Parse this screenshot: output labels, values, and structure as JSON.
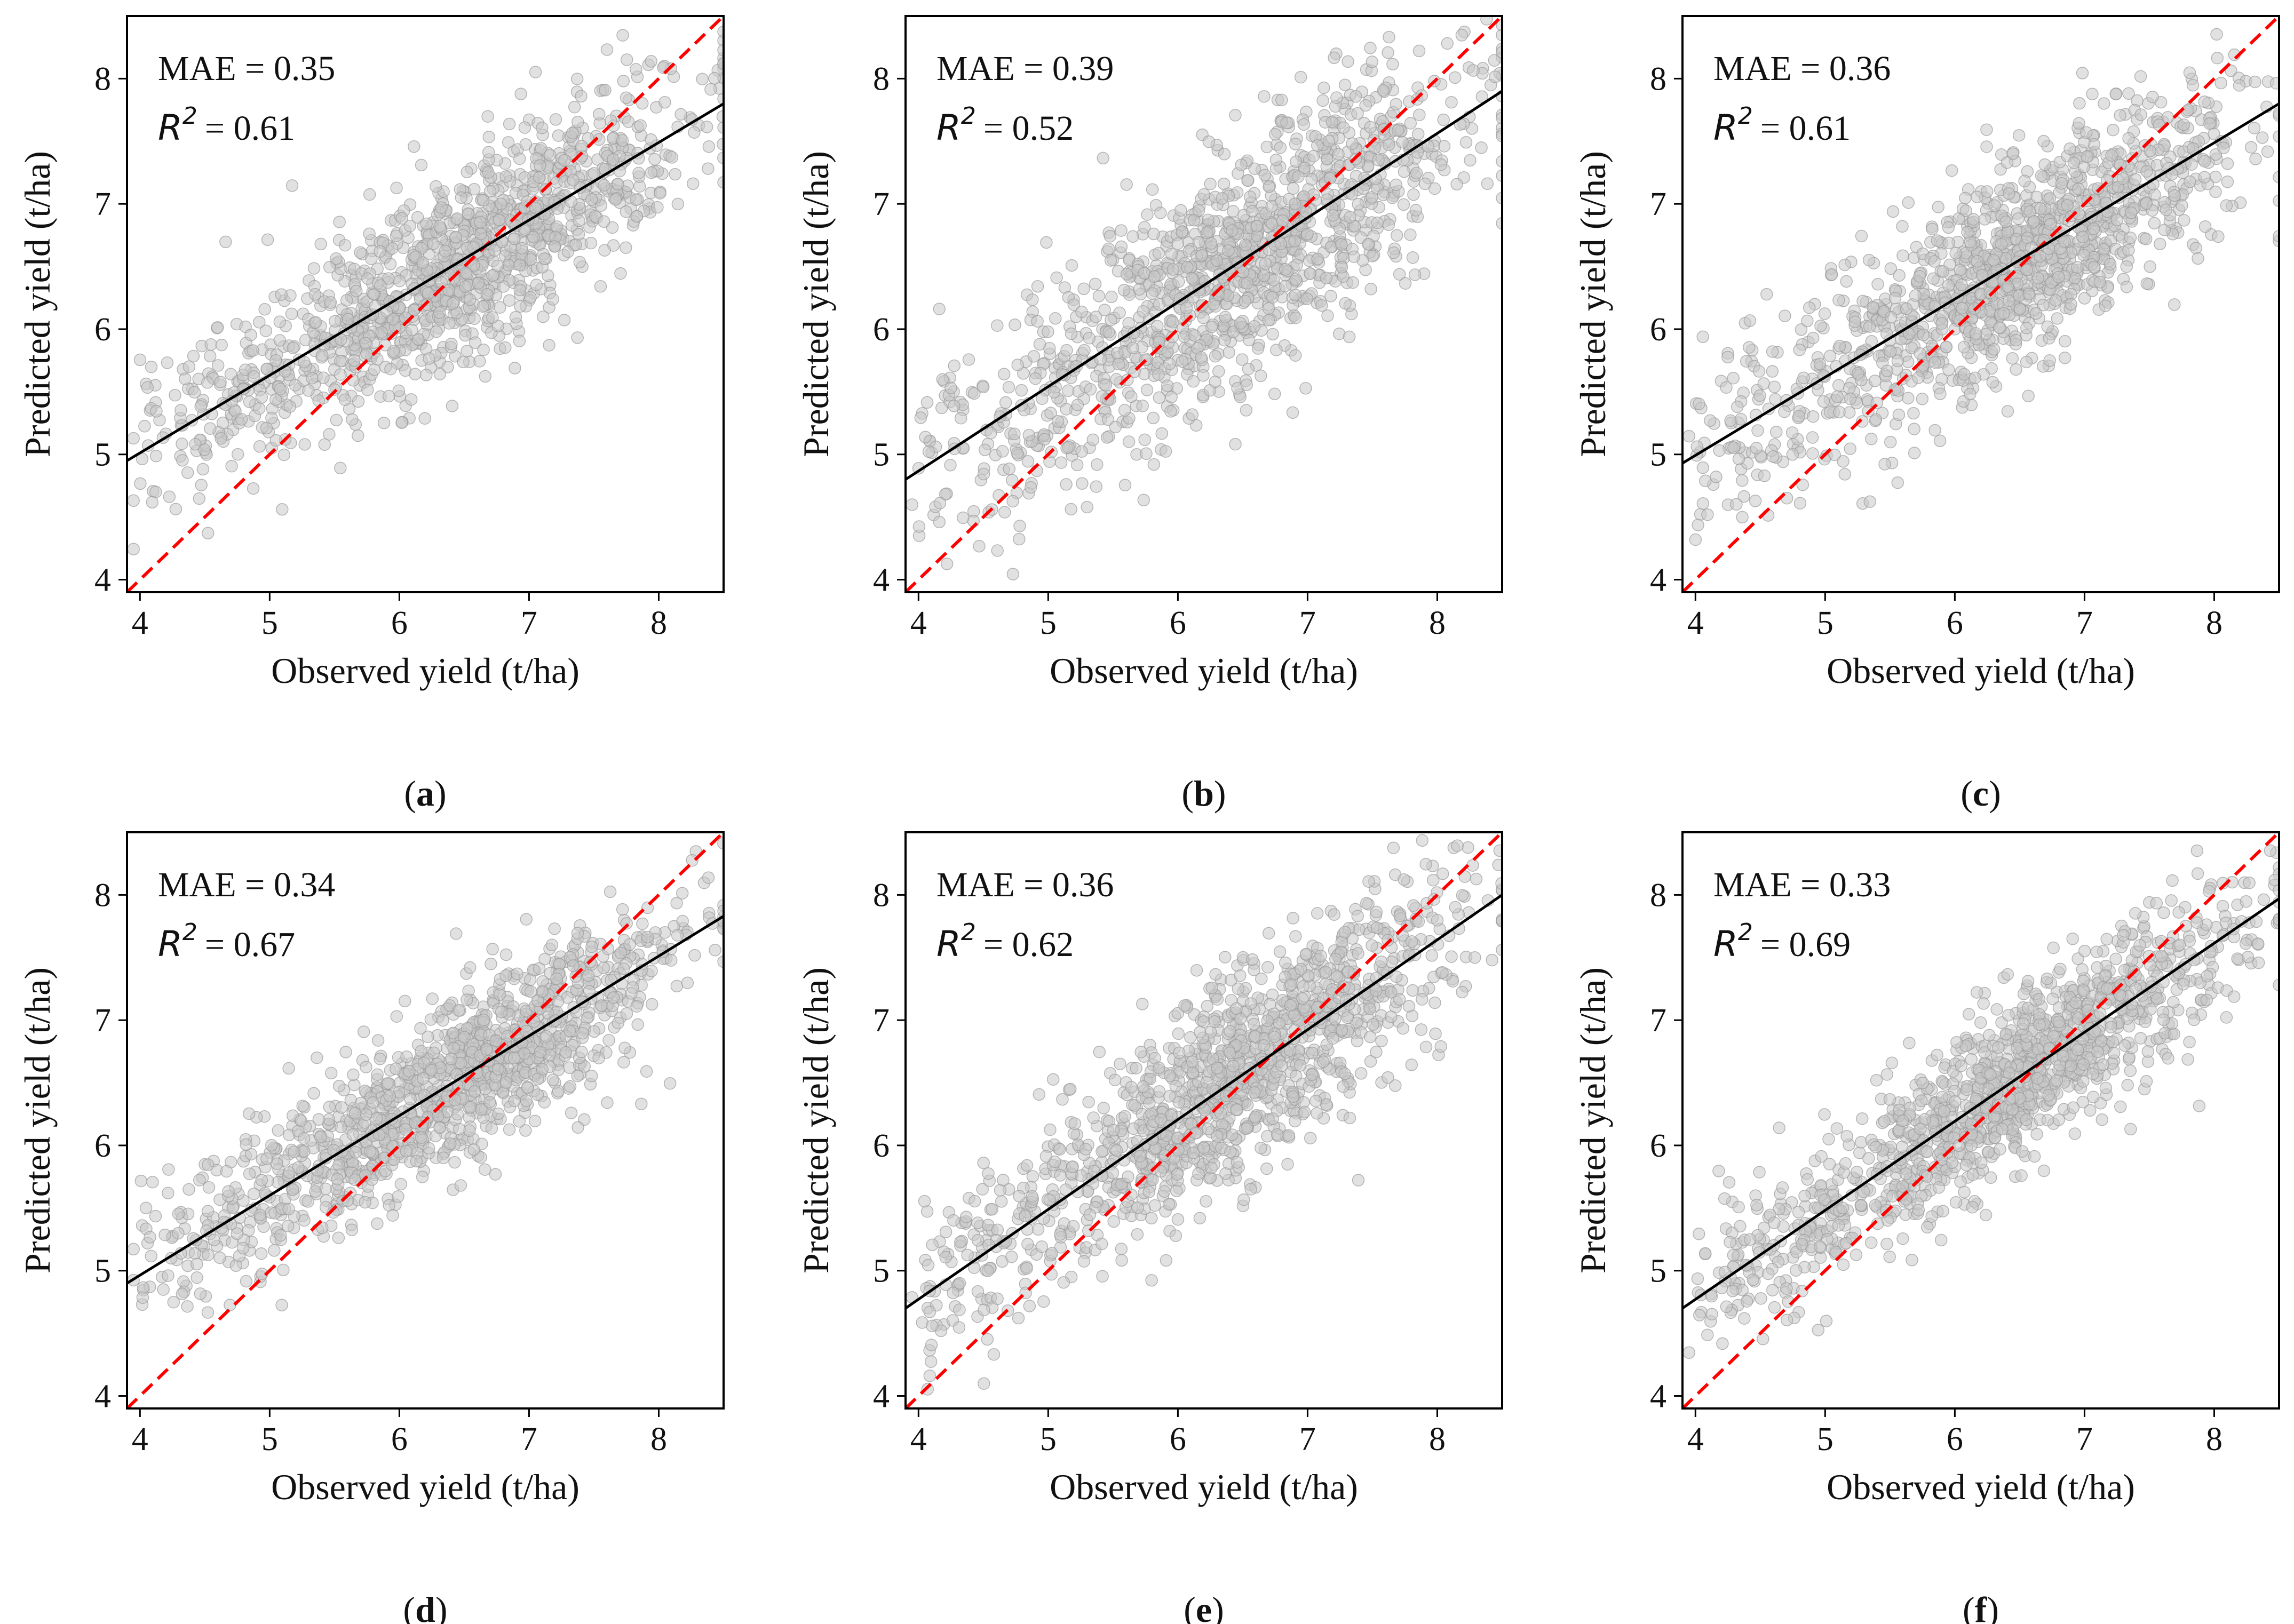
{
  "figure": {
    "colors": {
      "points_fill": "#c8c8c8",
      "points_stroke": "#9a9a9a",
      "fit_line": "#000000",
      "identity_line": "#ff0000",
      "axes": "#000000",
      "background": "#ffffff"
    }
  },
  "chart_data": [
    {
      "panel": "(a)",
      "type": "scatter",
      "xlabel": "Observed yield (t/ha)",
      "ylabel": "Predicted yield (t/ha)",
      "xlim": [
        3.9,
        8.5
      ],
      "ylim": [
        3.9,
        8.5
      ],
      "xticks": [
        "4",
        "5",
        "6",
        "7",
        "8"
      ],
      "yticks": [
        "4",
        "5",
        "6",
        "7",
        "8"
      ],
      "mae_text": "MAE = 0.35",
      "r2_symbol": "R",
      "r2_sup": "2",
      "r2_value": "= 0.61",
      "fit_line": {
        "x": [
          3.9,
          8.5
        ],
        "y": [
          4.95,
          7.8
        ]
      },
      "identity_line": {
        "x": [
          3.9,
          8.5
        ],
        "y": [
          3.9,
          8.5
        ]
      },
      "points_generator": {
        "n": 1300,
        "slope": 0.62,
        "intercept": 2.52,
        "noise": 0.38,
        "seed": 11
      }
    },
    {
      "panel": "(b)",
      "type": "scatter",
      "xlabel": "Observed yield (t/ha)",
      "ylabel": "Predicted yield (t/ha)",
      "xlim": [
        3.9,
        8.5
      ],
      "ylim": [
        3.9,
        8.5
      ],
      "xticks": [
        "4",
        "5",
        "6",
        "7",
        "8"
      ],
      "yticks": [
        "4",
        "5",
        "6",
        "7",
        "8"
      ],
      "mae_text": "MAE = 0.39",
      "r2_symbol": "R",
      "r2_sup": "2",
      "r2_value": "= 0.52",
      "fit_line": {
        "x": [
          3.9,
          8.5
        ],
        "y": [
          4.8,
          7.9
        ]
      },
      "identity_line": {
        "x": [
          3.9,
          8.5
        ],
        "y": [
          3.9,
          8.5
        ]
      },
      "points_generator": {
        "n": 1300,
        "slope": 0.67,
        "intercept": 2.18,
        "noise": 0.46,
        "seed": 23
      }
    },
    {
      "panel": "(c)",
      "type": "scatter",
      "xlabel": "Observed yield (t/ha)",
      "ylabel": "Predicted yield (t/ha)",
      "xlim": [
        3.9,
        8.5
      ],
      "ylim": [
        3.9,
        8.5
      ],
      "xticks": [
        "4",
        "5",
        "6",
        "7",
        "8"
      ],
      "yticks": [
        "4",
        "5",
        "6",
        "7",
        "8"
      ],
      "mae_text": "MAE = 0.36",
      "r2_symbol": "R",
      "r2_sup": "2",
      "r2_value": "= 0.61",
      "fit_line": {
        "x": [
          3.9,
          8.5
        ],
        "y": [
          4.93,
          7.8
        ]
      },
      "identity_line": {
        "x": [
          3.9,
          8.5
        ],
        "y": [
          3.9,
          8.5
        ]
      },
      "points_generator": {
        "n": 1300,
        "slope": 0.62,
        "intercept": 2.5,
        "noise": 0.4,
        "seed": 37
      }
    },
    {
      "panel": "(d)",
      "type": "scatter",
      "xlabel": "Observed yield (t/ha)",
      "ylabel": "Predicted yield (t/ha)",
      "xlim": [
        3.9,
        8.5
      ],
      "ylim": [
        3.9,
        8.5
      ],
      "xticks": [
        "4",
        "5",
        "6",
        "7",
        "8"
      ],
      "yticks": [
        "4",
        "5",
        "6",
        "7",
        "8"
      ],
      "mae_text": "MAE = 0.34",
      "r2_symbol": "R",
      "r2_sup": "2",
      "r2_value": "= 0.67",
      "fit_line": {
        "x": [
          3.9,
          8.5
        ],
        "y": [
          4.9,
          7.83
        ]
      },
      "identity_line": {
        "x": [
          3.9,
          8.5
        ],
        "y": [
          3.9,
          8.5
        ]
      },
      "points_generator": {
        "n": 1300,
        "slope": 0.64,
        "intercept": 2.4,
        "noise": 0.33,
        "seed": 41
      }
    },
    {
      "panel": "(e)",
      "type": "scatter",
      "xlabel": "Observed yield (t/ha)",
      "ylabel": "Predicted yield (t/ha)",
      "xlim": [
        3.9,
        8.5
      ],
      "ylim": [
        3.9,
        8.5
      ],
      "xticks": [
        "4",
        "5",
        "6",
        "7",
        "8"
      ],
      "yticks": [
        "4",
        "5",
        "6",
        "7",
        "8"
      ],
      "mae_text": "MAE = 0.36",
      "r2_symbol": "R",
      "r2_sup": "2",
      "r2_value": "= 0.62",
      "fit_line": {
        "x": [
          3.9,
          8.5
        ],
        "y": [
          4.7,
          8.0
        ]
      },
      "identity_line": {
        "x": [
          3.9,
          8.5
        ],
        "y": [
          3.9,
          8.5
        ]
      },
      "points_generator": {
        "n": 1300,
        "slope": 0.72,
        "intercept": 1.89,
        "noise": 0.4,
        "seed": 53
      }
    },
    {
      "panel": "(f)",
      "type": "scatter",
      "xlabel": "Observed yield (t/ha)",
      "ylabel": "Predicted yield (t/ha)",
      "xlim": [
        3.9,
        8.5
      ],
      "ylim": [
        3.9,
        8.5
      ],
      "xticks": [
        "4",
        "5",
        "6",
        "7",
        "8"
      ],
      "yticks": [
        "4",
        "5",
        "6",
        "7",
        "8"
      ],
      "mae_text": "MAE = 0.33",
      "r2_symbol": "R",
      "r2_sup": "2",
      "r2_value": "= 0.69",
      "fit_line": {
        "x": [
          3.9,
          8.5
        ],
        "y": [
          4.7,
          7.97
        ]
      },
      "identity_line": {
        "x": [
          3.9,
          8.5
        ],
        "y": [
          3.9,
          8.5
        ]
      },
      "points_generator": {
        "n": 1300,
        "slope": 0.71,
        "intercept": 1.93,
        "noise": 0.32,
        "seed": 67
      }
    }
  ]
}
